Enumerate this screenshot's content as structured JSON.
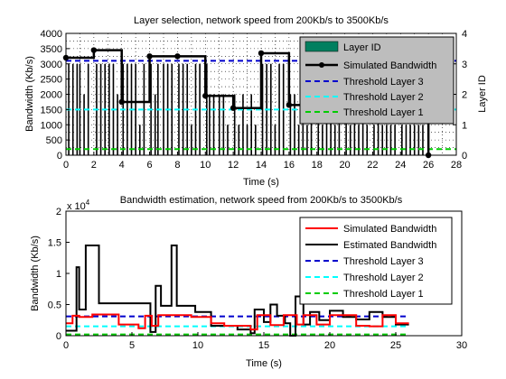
{
  "colors": {
    "layer_bar": "#007f5f",
    "simulated": "#000000",
    "estimated": "#000000",
    "simulated_bottom": "#ff0000",
    "th3": "#0000cc",
    "th2": "#00ffff",
    "th1": "#00cc00",
    "legend_bg_top": "#bdbdbd"
  },
  "chart_data": [
    {
      "type": "line",
      "title": "Layer selection, network speed from 200Kb/s to 3500Kb/s",
      "xlabel": "Time (s)",
      "ylabel": "Bandwidth (Kb/s)",
      "ylabel_right": "Layer ID",
      "xlim": [
        0,
        28
      ],
      "ylim": [
        0,
        4000
      ],
      "ylim_right": [
        0,
        4
      ],
      "xticks": [
        "0",
        "2",
        "4",
        "6",
        "8",
        "10",
        "12",
        "14",
        "16",
        "18",
        "20",
        "22",
        "24",
        "26",
        "28"
      ],
      "yticks": [
        "0",
        "500",
        "1000",
        "1500",
        "2000",
        "2500",
        "3000",
        "3500",
        "4000"
      ],
      "yticks_right": [
        "0",
        "1",
        "2",
        "3",
        "4"
      ],
      "grid": "dotted",
      "legend_position": "top-right",
      "legend": [
        "Layer ID",
        "Simulated Bandwidth",
        "Threshold Layer 3",
        "Threshold Layer 2",
        "Threshold Layer 1"
      ],
      "simulated_bandwidth": {
        "x": [
          0,
          2,
          4,
          6,
          8,
          10,
          12,
          14,
          16,
          18,
          20,
          22,
          24,
          26
        ],
        "y": [
          3200,
          3450,
          1750,
          3250,
          3250,
          1950,
          1550,
          3350,
          1650,
          1800,
          1900,
          1600,
          1400,
          0
        ]
      },
      "thresholds": {
        "layer3": 3100,
        "layer2": 1500,
        "layer1": 200
      },
      "layer_id": {
        "x": [
          0.2,
          0.5,
          0.8,
          1.0,
          1.3,
          1.6,
          2.2,
          2.5,
          2.8,
          3.1,
          3.4,
          3.7,
          4.1,
          4.4,
          4.7,
          5.0,
          5.3,
          5.6,
          6.1,
          6.4,
          6.6,
          7.0,
          7.3,
          7.6,
          8.1,
          8.4,
          8.7,
          9.0,
          9.3,
          9.6,
          10.1,
          10.3,
          10.6,
          11.0,
          11.3,
          11.6,
          12.1,
          12.4,
          12.7,
          13.0,
          13.3,
          13.6,
          14.1,
          14.4,
          14.7,
          15.0,
          15.3,
          15.6,
          16.1,
          16.4,
          16.7,
          17.0,
          17.3,
          17.6,
          18.1,
          18.4,
          18.7,
          19.0,
          19.3,
          19.6,
          20.1,
          20.4,
          20.7,
          21.0,
          21.3,
          21.6,
          22.1,
          22.4,
          22.7,
          23.0,
          23.3,
          23.6,
          24.1,
          24.4,
          24.7,
          25.0,
          25.3,
          25.6
        ],
        "y": [
          3,
          3,
          3,
          3,
          2,
          3,
          3,
          3,
          3,
          3,
          3,
          2,
          3,
          3,
          3,
          3,
          1,
          3,
          3,
          2,
          3,
          3,
          3,
          3,
          3,
          3,
          3,
          1,
          3,
          3,
          3,
          2,
          2,
          2,
          2,
          1,
          2,
          1,
          2,
          1,
          2,
          1,
          3,
          3,
          3,
          1,
          3,
          3,
          2,
          2,
          1,
          2,
          1,
          2,
          2,
          1,
          2,
          2,
          1,
          2,
          2,
          1,
          2,
          1,
          2,
          1,
          1,
          2,
          1,
          1,
          1,
          1,
          1,
          1,
          1,
          1,
          1,
          1
        ]
      }
    },
    {
      "type": "line",
      "title": "Bandwidth estimation, network speed from 200Kb/s to 3500Kb/s",
      "xlabel": "Time (s)",
      "ylabel": "Bandwidth (Kb/s)",
      "exponent_label": "x 10",
      "exponent_power": "4",
      "xlim": [
        0,
        30
      ],
      "ylim": [
        0,
        20000
      ],
      "xticks": [
        "0",
        "5",
        "10",
        "15",
        "20",
        "25",
        "30"
      ],
      "yticks": [
        "0",
        "0.5",
        "1",
        "1.5",
        "2"
      ],
      "legend_position": "top-right",
      "legend": [
        "Simulated Bandwidth",
        "Estimated Bandwidth",
        "Threshold Layer 3",
        "Threshold Layer 2",
        "Threshold Layer 1"
      ],
      "simulated_bandwidth": {
        "x": [
          0,
          0.5,
          1,
          2,
          4,
          5.5,
          6,
          6.5,
          7,
          8,
          9.5,
          11,
          12,
          12.5,
          14,
          14.5,
          15,
          15.5,
          16.5,
          17.5,
          18,
          19,
          20,
          21,
          22,
          23,
          24,
          25,
          26
        ],
        "y": [
          2000,
          3200,
          3000,
          3400,
          1800,
          1200,
          3200,
          1600,
          3300,
          3300,
          3000,
          2000,
          1600,
          1600,
          1000,
          3300,
          3300,
          1700,
          3300,
          1800,
          3300,
          1800,
          3300,
          3300,
          1600,
          1500,
          3300,
          2000,
          2000
        ]
      },
      "estimated_bandwidth": {
        "x": [
          0,
          0.8,
          1.0,
          1.5,
          2,
          2.5,
          4,
          6,
          6.4,
          6.8,
          7.2,
          8,
          8.4,
          9.8,
          10.2,
          11,
          11.6,
          12,
          13,
          14,
          14.3,
          15,
          15.5,
          16,
          16.6,
          17,
          17.4,
          18,
          18.5,
          19.2,
          20,
          21,
          22,
          23,
          24,
          25,
          26
        ],
        "y": [
          800,
          11000,
          4200,
          14500,
          14500,
          5200,
          5200,
          5200,
          600,
          8000,
          4800,
          14500,
          4800,
          3800,
          3800,
          1600,
          1600,
          1600,
          1000,
          400,
          4200,
          2200,
          5000,
          3200,
          2000,
          0,
          6300,
          1800,
          3800,
          2500,
          4000,
          3000,
          2600,
          3800,
          3000,
          1800,
          1800
        ]
      },
      "thresholds": {
        "layer3": 3100,
        "layer2": 1500,
        "layer1": 200
      }
    }
  ]
}
